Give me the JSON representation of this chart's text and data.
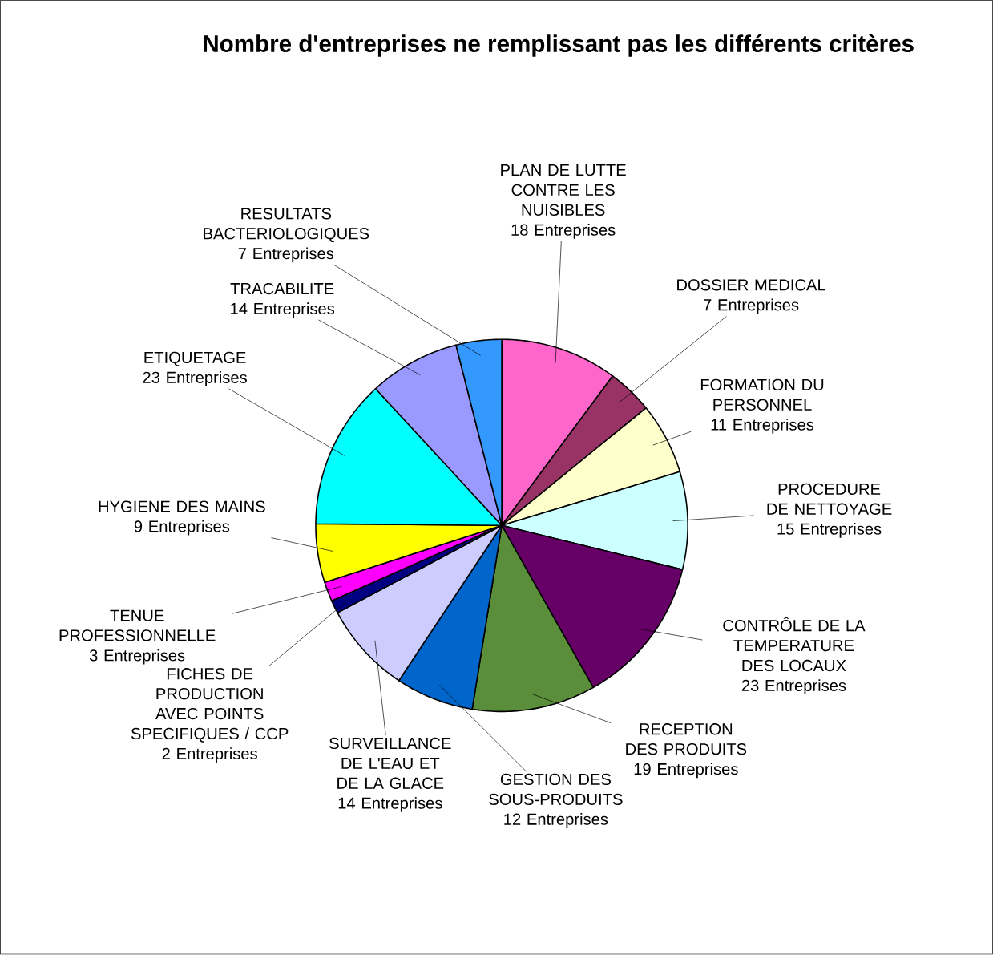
{
  "chart_data": {
    "type": "pie",
    "title": "Nombre d'entreprises ne remplissant pas les différents critères",
    "categories": [
      "PLAN DE LUTTE CONTRE LES NUISIBLES",
      "DOSSIER MEDICAL",
      "FORMATION DU PERSONNEL",
      "PROCEDURE DE NETTOYAGE",
      "CONTRÔLE DE LA TEMPERATURE DES LOCAUX",
      "RECEPTION DES PRODUITS",
      "GESTION DES SOUS-PRODUITS",
      "SURVEILLANCE DE L'EAU ET DE LA GLACE",
      "FICHES DE PRODUCTION AVEC POINTS SPECIFIQUES / CCP",
      "TENUE PROFESSIONNELLE",
      "HYGIENE DES MAINS",
      "ETIQUETAGE",
      "TRACABILITE",
      "RESULTATS BACTERIOLOGIQUES"
    ],
    "values": [
      18,
      7,
      11,
      15,
      23,
      19,
      12,
      14,
      2,
      3,
      9,
      23,
      14,
      7
    ],
    "value_labels": [
      "18 Entreprises",
      "7 Entreprises",
      "11 Entreprises",
      "15 Entreprises",
      "23 Entreprises",
      "19 Entreprises",
      "12 Entreprises",
      "14 Entreprises",
      "2 Entreprises",
      "3 Entreprises",
      "9 Entreprises",
      "23 Entreprises",
      "14 Entreprises",
      "7 Entreprises"
    ],
    "colors": [
      "#ff66cc",
      "#993366",
      "#ffffcc",
      "#ccffff",
      "#660066",
      "#5b8e3b",
      "#0066cc",
      "#ccccff",
      "#000080",
      "#ff00ff",
      "#ffff00",
      "#00ffff",
      "#9999ff",
      "#3399ff"
    ]
  }
}
